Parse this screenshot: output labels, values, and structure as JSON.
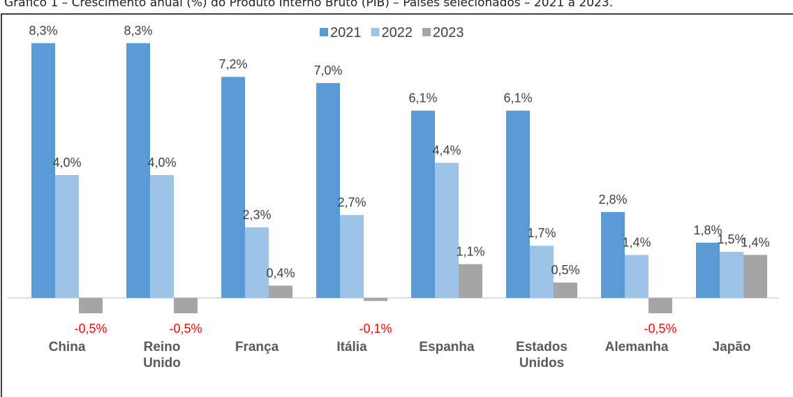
{
  "chart_data": {
    "type": "bar",
    "title": "Gráfico 1 – Crescimento anual (%) do Produto Interno Bruto (PIB) – Países selecionados – 2021 a 2023.",
    "categories": [
      "China",
      "Reino Unido",
      "França",
      "Itália",
      "Espanha",
      "Estados Unidos",
      "Alemanha",
      "Japão"
    ],
    "series": [
      {
        "name": "2021",
        "color": "#5b9bd5",
        "values": [
          8.3,
          8.3,
          7.2,
          7.0,
          6.1,
          6.1,
          2.8,
          1.8
        ],
        "value_labels": [
          "8,3%",
          "8,3%",
          "7,2%",
          "7,0%",
          "6,1%",
          "6,1%",
          "2,8%",
          "1,8%"
        ]
      },
      {
        "name": "2022",
        "color": "#9dc3e6",
        "values": [
          4.0,
          4.0,
          2.3,
          2.7,
          4.4,
          1.7,
          1.4,
          1.5
        ],
        "value_labels": [
          "4,0%",
          "4,0%",
          "2,3%",
          "2,7%",
          "4,4%",
          "1,7%",
          "1,4%",
          "1,5%"
        ]
      },
      {
        "name": "2023",
        "color": "#a5a5a5",
        "values": [
          -0.5,
          -0.5,
          0.4,
          -0.1,
          1.1,
          0.5,
          -0.5,
          1.4
        ],
        "value_labels": [
          "-0,5%",
          "-0,5%",
          "0,4%",
          "-0,1%",
          "1,1%",
          "0,5%",
          "-0,5%",
          "1,4%"
        ]
      }
    ],
    "negative_label_color": "#ff0000",
    "ylim": [
      -1,
      9
    ],
    "legend": "top"
  }
}
